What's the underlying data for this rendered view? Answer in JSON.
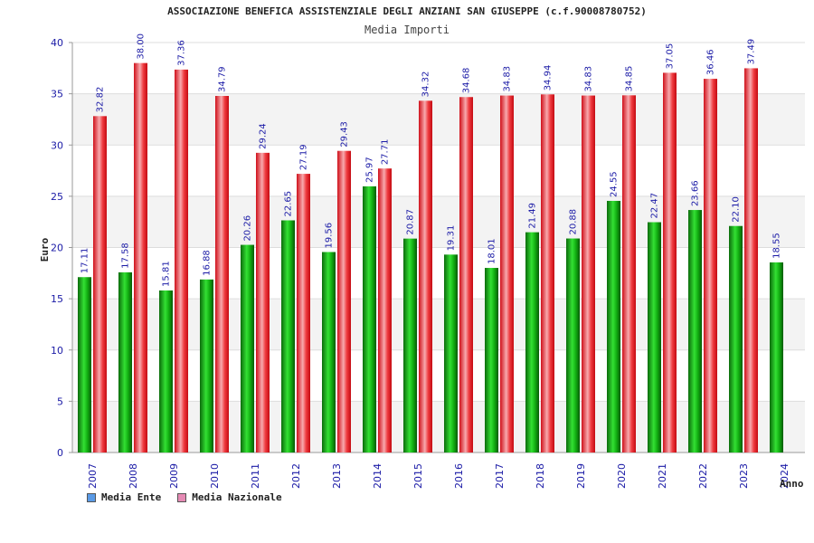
{
  "chart_data": {
    "type": "bar",
    "title": "ASSOCIAZIONE BENEFICA ASSISTENZIALE DEGLI ANZIANI SAN GIUSEPPE (c.f.90008780752)",
    "subtitle": "Media Importi",
    "ylabel": "Euro",
    "xlabel": "Anno",
    "ylim": [
      0,
      40
    ],
    "yticks": [
      0,
      5,
      10,
      15,
      20,
      25,
      30,
      35,
      40
    ],
    "grid": true,
    "categories": [
      "2007",
      "2008",
      "2009",
      "2010",
      "2011",
      "2012",
      "2013",
      "2014",
      "2015",
      "2016",
      "2017",
      "2018",
      "2019",
      "2020",
      "2021",
      "2022",
      "2023",
      "2024"
    ],
    "series": [
      {
        "name": "Media Ente",
        "color": "#14b814",
        "legend_color": "#5a9ae6",
        "values": [
          17.11,
          17.58,
          15.81,
          16.88,
          20.26,
          22.65,
          19.56,
          25.97,
          20.87,
          19.31,
          18.01,
          21.49,
          20.88,
          24.55,
          22.47,
          23.66,
          22.1,
          18.55
        ],
        "labels": [
          "17.11",
          "17.58",
          "15.81",
          "16.88",
          "20.26",
          "22.65",
          "19.56",
          "25.97",
          "20.87",
          "19.31",
          "18.01",
          "21.49",
          "20.88",
          "24.55",
          "22.47",
          "23.66",
          "22.10",
          "18.55"
        ]
      },
      {
        "name": "Media Nazionale",
        "color": "#ec2c2c",
        "legend_color": "#e58ab4",
        "values": [
          32.82,
          38.0,
          37.36,
          34.79,
          29.24,
          27.19,
          29.43,
          27.71,
          34.32,
          34.68,
          34.83,
          34.94,
          34.83,
          34.85,
          37.05,
          36.46,
          37.49,
          null
        ],
        "labels": [
          "32.82",
          "38.00",
          "37.36",
          "34.79",
          "29.24",
          "27.19",
          "29.43",
          "27.71",
          "34.32",
          "34.68",
          "34.83",
          "34.94",
          "34.83",
          "34.85",
          "37.05",
          "36.46",
          "37.49",
          ""
        ]
      }
    ]
  }
}
